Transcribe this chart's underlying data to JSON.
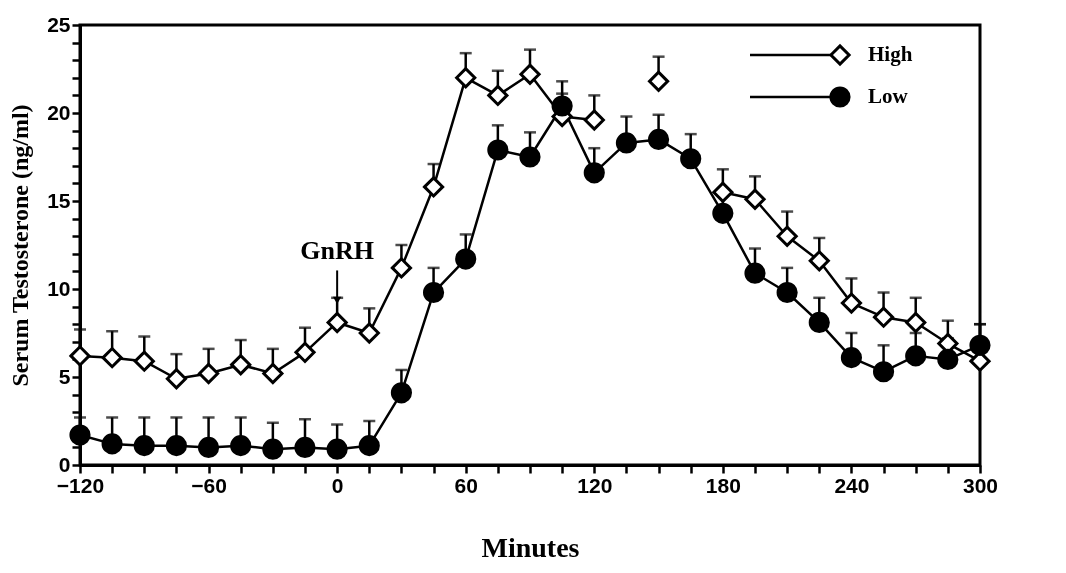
{
  "chart_data": {
    "type": "line",
    "xlabel": "Minutes",
    "ylabel": "Serum Testosterone (ng/ml)",
    "x": [
      -120,
      -105,
      -90,
      -75,
      -60,
      -45,
      -30,
      -15,
      0,
      15,
      30,
      45,
      60,
      75,
      90,
      105,
      120,
      135,
      150,
      165,
      180,
      195,
      210,
      225,
      240,
      255,
      270,
      285,
      300
    ],
    "series": [
      {
        "name": "High",
        "color": "#000000",
        "marker": "diamond",
        "values": [
          6.2,
          6.1,
          5.9,
          4.9,
          5.2,
          5.7,
          5.2,
          6.4,
          8.1,
          7.5,
          11.2,
          15.8,
          22.0,
          21.0,
          22.2,
          19.8,
          19.6,
          null,
          21.8,
          null,
          15.5,
          15.1,
          13.0,
          11.6,
          9.2,
          8.4,
          8.1,
          6.9,
          5.9
        ],
        "errors": [
          [
            6.2,
            7.7
          ],
          [
            6.1,
            7.6
          ],
          [
            5.9,
            7.3
          ],
          [
            4.9,
            6.3
          ],
          [
            5.2,
            6.6
          ],
          [
            5.7,
            7.1
          ],
          [
            5.2,
            6.6
          ],
          [
            6.4,
            7.8
          ],
          [
            8.1,
            9.5
          ],
          [
            7.5,
            8.9
          ],
          [
            11.2,
            12.5
          ],
          [
            15.8,
            17.1
          ],
          [
            22.0,
            23.4
          ],
          [
            21.0,
            22.4
          ],
          [
            22.2,
            23.6
          ],
          [
            19.8,
            21.1
          ],
          [
            19.6,
            21.0
          ],
          null,
          [
            21.8,
            23.2
          ],
          null,
          [
            15.5,
            16.8
          ],
          [
            15.1,
            16.4
          ],
          [
            13.0,
            14.4
          ],
          [
            11.6,
            12.9
          ],
          [
            9.2,
            10.6
          ],
          [
            8.4,
            9.8
          ],
          [
            8.1,
            9.5
          ],
          [
            6.9,
            8.2
          ],
          [
            5.9,
            8.0
          ]
        ]
      },
      {
        "name": "Low",
        "color": "#000000",
        "marker": "circle",
        "values": [
          1.7,
          1.2,
          1.1,
          1.1,
          1.0,
          1.1,
          0.9,
          1.0,
          0.9,
          1.1,
          4.1,
          9.8,
          11.7,
          17.9,
          17.5,
          20.4,
          16.6,
          18.3,
          18.5,
          17.4,
          14.3,
          10.9,
          9.8,
          8.1,
          6.1,
          5.3,
          6.2,
          6.0,
          6.8
        ],
        "errors": [
          [
            1.7,
            2.7
          ],
          [
            1.2,
            2.7
          ],
          [
            1.1,
            2.7
          ],
          [
            1.1,
            2.7
          ],
          [
            1.0,
            2.7
          ],
          [
            1.1,
            2.7
          ],
          [
            0.9,
            2.4
          ],
          [
            1.0,
            2.6
          ],
          [
            0.9,
            2.3
          ],
          [
            1.1,
            2.5
          ],
          [
            4.1,
            5.4
          ],
          [
            9.8,
            11.2
          ],
          [
            11.7,
            13.1
          ],
          [
            17.9,
            19.3
          ],
          [
            17.5,
            18.9
          ],
          [
            20.4,
            21.8
          ],
          [
            16.6,
            18.0
          ],
          [
            18.3,
            19.8
          ],
          [
            18.5,
            19.9
          ],
          [
            17.4,
            18.8
          ],
          [
            14.3,
            15.7
          ],
          [
            10.9,
            12.3
          ],
          [
            9.8,
            11.2
          ],
          [
            8.1,
            9.5
          ],
          [
            6.1,
            7.5
          ],
          [
            5.3,
            6.8
          ],
          [
            6.2,
            7.5
          ],
          [
            6.0,
            7.2
          ],
          [
            6.8,
            8.0
          ]
        ]
      }
    ],
    "xlim": [
      -120,
      300
    ],
    "xticks": [
      {
        "value": -120,
        "label": "−120"
      },
      {
        "value": -105,
        "label": null
      },
      {
        "value": -90,
        "label": null
      },
      {
        "value": -75,
        "label": null
      },
      {
        "value": -60,
        "label": "−60"
      },
      {
        "value": -45,
        "label": null
      },
      {
        "value": -30,
        "label": null
      },
      {
        "value": -15,
        "label": null
      },
      0,
      {
        "value": 15,
        "label": null
      },
      {
        "value": 30,
        "label": null
      },
      {
        "value": 45,
        "label": null
      },
      60,
      {
        "value": 75,
        "label": null
      },
      {
        "value": 90,
        "label": null
      },
      {
        "value": 105,
        "label": null
      },
      120,
      {
        "value": 135,
        "label": null
      },
      {
        "value": 150,
        "label": null
      },
      {
        "value": 165,
        "label": null
      },
      180,
      {
        "value": 195,
        "label": null
      },
      {
        "value": 210,
        "label": null
      },
      {
        "value": 225,
        "label": null
      },
      240,
      {
        "value": 255,
        "label": null
      },
      {
        "value": 270,
        "label": null
      },
      {
        "value": 285,
        "label": null
      },
      300
    ],
    "ylim": [
      0,
      25
    ],
    "yticks": [
      0,
      {
        "value": 1,
        "label": null
      },
      {
        "value": 2,
        "label": null
      },
      {
        "value": 3,
        "label": null
      },
      {
        "value": 4,
        "label": null
      },
      5,
      {
        "value": 6,
        "label": null
      },
      {
        "value": 7,
        "label": null
      },
      {
        "value": 8,
        "label": null
      },
      {
        "value": 9,
        "label": null
      },
      10,
      {
        "value": 11,
        "label": null
      },
      {
        "value": 12,
        "label": null
      },
      {
        "value": 13,
        "label": null
      },
      {
        "value": 14,
        "label": null
      },
      15,
      {
        "value": 16,
        "label": null
      },
      {
        "value": 17,
        "label": null
      },
      {
        "value": 18,
        "label": null
      },
      {
        "value": 19,
        "label": null
      },
      20,
      {
        "value": 21,
        "label": null
      },
      {
        "value": 22,
        "label": null
      },
      {
        "value": 23,
        "label": null
      },
      {
        "value": 24,
        "label": null
      },
      25
    ],
    "annotations": [
      {
        "text": "GnRH",
        "x": 0,
        "y": 8.1
      }
    ],
    "legend": "top right",
    "grid": false,
    "line_style": "solid"
  }
}
